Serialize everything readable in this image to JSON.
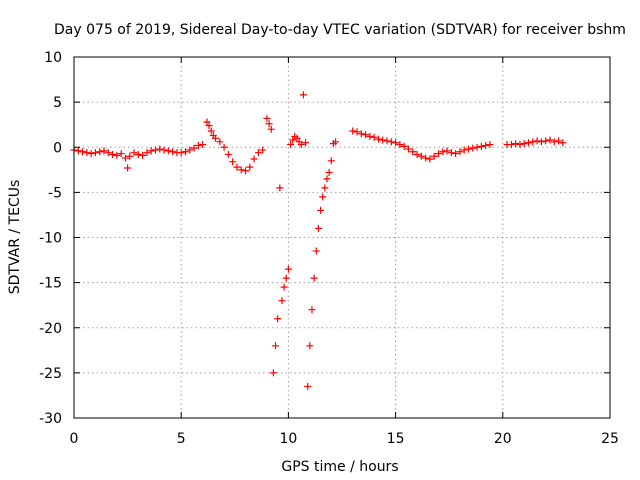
{
  "chart_data": {
    "type": "scatter",
    "title": "Day 075 of 2019, Sidereal Day-to-day VTEC variation (SDTVAR) for receiver bshm",
    "xlabel": "GPS time / hours",
    "ylabel": "SDTVAR / TECUs",
    "xlim": [
      0,
      25
    ],
    "ylim": [
      -30,
      10
    ],
    "xticks": [
      "0",
      "5",
      "10",
      "15",
      "20",
      "25"
    ],
    "yticks": [
      "10",
      "5",
      "0",
      "-5",
      "-10",
      "-15",
      "-20",
      "-25",
      "-30"
    ],
    "grid": true,
    "marker": "plus",
    "series": [
      {
        "name": "SDTVAR",
        "color": "#ff0000",
        "x": [
          0.0,
          0.2,
          0.4,
          0.6,
          0.8,
          1.0,
          1.2,
          1.4,
          1.6,
          1.8,
          2.0,
          2.2,
          2.4,
          2.5,
          2.6,
          2.8,
          3.0,
          3.2,
          3.4,
          3.6,
          3.8,
          4.0,
          4.2,
          4.4,
          4.6,
          4.8,
          5.0,
          5.2,
          5.4,
          5.6,
          5.8,
          6.0,
          6.2,
          6.3,
          6.4,
          6.5,
          6.6,
          6.8,
          7.0,
          7.2,
          7.4,
          7.6,
          7.8,
          8.0,
          8.2,
          8.4,
          8.6,
          8.8,
          9.0,
          9.1,
          9.2,
          9.3,
          9.4,
          9.5,
          9.6,
          9.7,
          9.8,
          9.9,
          10.0,
          10.1,
          10.2,
          10.3,
          10.4,
          10.5,
          10.6,
          10.7,
          10.8,
          10.9,
          11.0,
          11.1,
          11.2,
          11.3,
          11.4,
          11.5,
          11.6,
          11.7,
          11.8,
          11.9,
          12.0,
          12.1,
          12.2,
          13.0,
          13.2,
          13.4,
          13.6,
          13.8,
          14.0,
          14.2,
          14.4,
          14.6,
          14.8,
          15.0,
          15.2,
          15.4,
          15.6,
          15.8,
          16.0,
          16.2,
          16.4,
          16.6,
          16.8,
          17.0,
          17.2,
          17.4,
          17.6,
          17.8,
          18.0,
          18.2,
          18.4,
          18.6,
          18.8,
          19.0,
          19.2,
          19.4,
          20.2,
          20.4,
          20.6,
          20.8,
          21.0,
          21.2,
          21.4,
          21.6,
          21.8,
          22.0,
          22.2,
          22.4,
          22.6,
          22.8
        ],
        "y": [
          -0.3,
          -0.4,
          -0.5,
          -0.6,
          -0.7,
          -0.6,
          -0.5,
          -0.4,
          -0.6,
          -0.8,
          -0.9,
          -0.7,
          -1.2,
          -2.3,
          -1.0,
          -0.6,
          -0.8,
          -0.9,
          -0.6,
          -0.4,
          -0.3,
          -0.2,
          -0.3,
          -0.4,
          -0.5,
          -0.6,
          -0.6,
          -0.5,
          -0.3,
          -0.1,
          0.2,
          0.3,
          2.8,
          2.4,
          1.8,
          1.3,
          1.0,
          0.6,
          0.0,
          -0.8,
          -1.6,
          -2.2,
          -2.5,
          -2.6,
          -2.2,
          -1.3,
          -0.6,
          -0.3,
          3.2,
          2.6,
          2.0,
          -25.0,
          -22.0,
          -19.0,
          -4.5,
          -17.0,
          -15.5,
          -14.5,
          -13.5,
          0.3,
          0.8,
          1.2,
          1.0,
          0.6,
          0.3,
          5.8,
          0.5,
          -26.5,
          -22.0,
          -18.0,
          -14.5,
          -11.5,
          -9.0,
          -7.0,
          -5.5,
          -4.5,
          -3.5,
          -2.8,
          -1.5,
          0.4,
          0.6,
          1.8,
          1.7,
          1.5,
          1.4,
          1.2,
          1.1,
          0.9,
          0.8,
          0.7,
          0.6,
          0.5,
          0.3,
          0.1,
          -0.2,
          -0.5,
          -0.8,
          -1.0,
          -1.2,
          -1.3,
          -1.0,
          -0.7,
          -0.5,
          -0.4,
          -0.6,
          -0.7,
          -0.5,
          -0.3,
          -0.2,
          -0.1,
          0.0,
          0.1,
          0.2,
          0.3,
          0.3,
          0.3,
          0.4,
          0.3,
          0.4,
          0.5,
          0.6,
          0.7,
          0.6,
          0.7,
          0.8,
          0.6,
          0.7,
          0.5
        ]
      }
    ]
  }
}
